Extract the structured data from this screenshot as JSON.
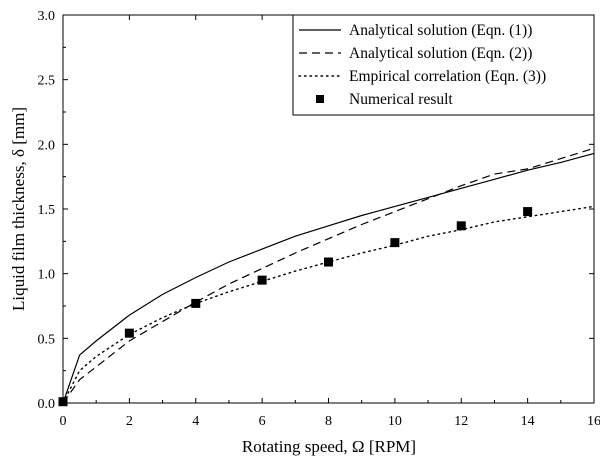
{
  "chart_data": {
    "type": "line",
    "xlabel": "Rotating speed, Ω [RPM]",
    "ylabel": "Liquid film thickness, δ [mm]",
    "xlim": [
      0,
      16
    ],
    "ylim": [
      0,
      3.0
    ],
    "xticks": [
      0,
      2,
      4,
      6,
      8,
      10,
      12,
      14,
      16
    ],
    "yticks": [
      "0.0",
      "0.5",
      "1.0",
      "1.5",
      "2.0",
      "2.5",
      "3.0"
    ],
    "grid": false,
    "legend_position": "top-right",
    "series": [
      {
        "name": "Analytical solution (Eqn. (1))",
        "style": "solid",
        "x": [
          0,
          0.5,
          1,
          2,
          3,
          4,
          5,
          6,
          7,
          8,
          9,
          10,
          11,
          12,
          13,
          14,
          15,
          16
        ],
        "y": [
          0,
          0.37,
          0.48,
          0.68,
          0.84,
          0.97,
          1.09,
          1.19,
          1.29,
          1.37,
          1.45,
          1.52,
          1.59,
          1.66,
          1.73,
          1.8,
          1.86,
          1.93
        ]
      },
      {
        "name": "Analytical solution (Eqn. (2))",
        "style": "dashed",
        "x": [
          0,
          0.5,
          1,
          2,
          3,
          4,
          5,
          6,
          7,
          8,
          9,
          10,
          11,
          12,
          13,
          14,
          15,
          16
        ],
        "y": [
          0,
          0.18,
          0.28,
          0.48,
          0.63,
          0.78,
          0.92,
          1.04,
          1.16,
          1.27,
          1.38,
          1.48,
          1.58,
          1.68,
          1.77,
          1.81,
          1.89,
          1.97
        ]
      },
      {
        "name": "Empirical correlation (Eqn. (3))",
        "style": "dotted",
        "x": [
          0,
          0.5,
          1,
          2,
          3,
          4,
          5,
          6,
          7,
          8,
          9,
          10,
          11,
          12,
          13,
          14,
          15,
          16
        ],
        "y": [
          0,
          0.25,
          0.36,
          0.53,
          0.66,
          0.77,
          0.86,
          0.94,
          1.02,
          1.09,
          1.16,
          1.22,
          1.29,
          1.34,
          1.4,
          1.44,
          1.48,
          1.52
        ]
      },
      {
        "name": "Numerical result",
        "style": "marker",
        "x": [
          0,
          2,
          4,
          6,
          8,
          10,
          12,
          14
        ],
        "y": [
          0.01,
          0.54,
          0.77,
          0.95,
          1.09,
          1.24,
          1.37,
          1.48
        ]
      }
    ]
  },
  "colors": {
    "ink": "#000000",
    "background": "#ffffff"
  }
}
